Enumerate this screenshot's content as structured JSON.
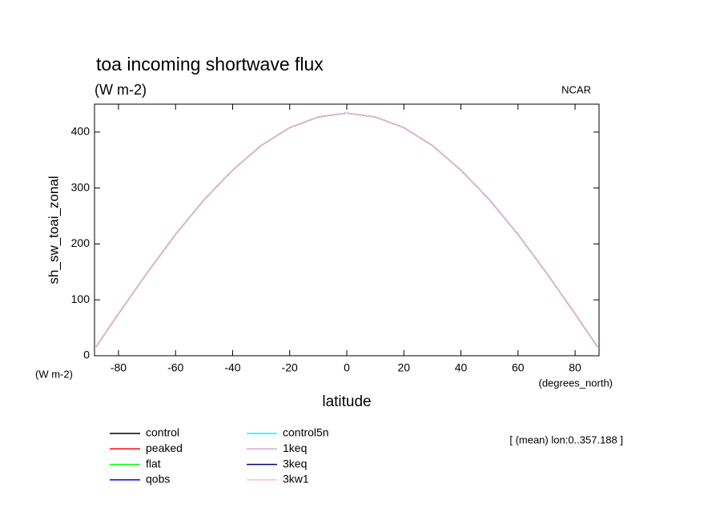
{
  "chart_data": {
    "type": "line",
    "title": "toa incoming shortwave flux",
    "subtitle": "(W m-2)",
    "source": "NCAR",
    "y_label": "sh_sw_toai_zonal",
    "y_units": "(W m-2)",
    "x_label": "latitude",
    "x_units": "(degrees_north)",
    "note": "[ (mean) lon:0..357.188 ]",
    "x": [
      -87.86,
      -80,
      -70,
      -60,
      -50,
      -40,
      -30,
      -20,
      -10,
      0,
      10,
      20,
      30,
      40,
      50,
      60,
      70,
      80,
      87.86
    ],
    "xlim": [
      -88.4,
      88.4
    ],
    "xticks": [
      -80,
      -60,
      -40,
      -20,
      0,
      20,
      40,
      60,
      80
    ],
    "ylim": [
      0,
      450
    ],
    "yticks": [
      0,
      100,
      200,
      300,
      400
    ],
    "series": [
      {
        "name": "control",
        "color": "#000000",
        "values": [
          16,
          75,
          148,
          217,
          279,
          332,
          376,
          408,
          427,
          434,
          427,
          408,
          376,
          332,
          279,
          217,
          148,
          75,
          16
        ]
      },
      {
        "name": "peaked",
        "color": "#ff0000",
        "values": [
          16,
          75,
          148,
          217,
          279,
          332,
          376,
          408,
          427,
          434,
          427,
          408,
          376,
          332,
          279,
          217,
          148,
          75,
          16
        ]
      },
      {
        "name": "flat",
        "color": "#00ff00",
        "values": [
          16,
          75,
          148,
          217,
          279,
          332,
          376,
          408,
          427,
          434,
          427,
          408,
          376,
          332,
          279,
          217,
          148,
          75,
          16
        ]
      },
      {
        "name": "qobs",
        "color": "#0000ff",
        "values": [
          16,
          75,
          148,
          217,
          279,
          332,
          376,
          408,
          427,
          434,
          427,
          408,
          376,
          332,
          279,
          217,
          148,
          75,
          16
        ]
      },
      {
        "name": "control5n",
        "color": "#00ffff",
        "values": [
          16,
          75,
          148,
          217,
          279,
          332,
          376,
          408,
          427,
          434,
          427,
          408,
          376,
          332,
          279,
          217,
          148,
          75,
          16
        ]
      },
      {
        "name": "1keq",
        "color": "#d8a0e8",
        "values": [
          16,
          75,
          148,
          217,
          279,
          332,
          376,
          408,
          427,
          434,
          427,
          408,
          376,
          332,
          279,
          217,
          148,
          75,
          16
        ]
      },
      {
        "name": "3keq",
        "color": "#000080",
        "values": [
          16,
          75,
          148,
          217,
          279,
          332,
          376,
          408,
          427,
          434,
          427,
          408,
          376,
          332,
          279,
          217,
          148,
          75,
          16
        ]
      },
      {
        "name": "3kw1",
        "color": "#ffc0cb",
        "values": [
          16,
          75,
          148,
          217,
          279,
          332,
          376,
          408,
          427,
          434,
          427,
          408,
          376,
          332,
          279,
          217,
          148,
          75,
          16
        ]
      }
    ]
  }
}
